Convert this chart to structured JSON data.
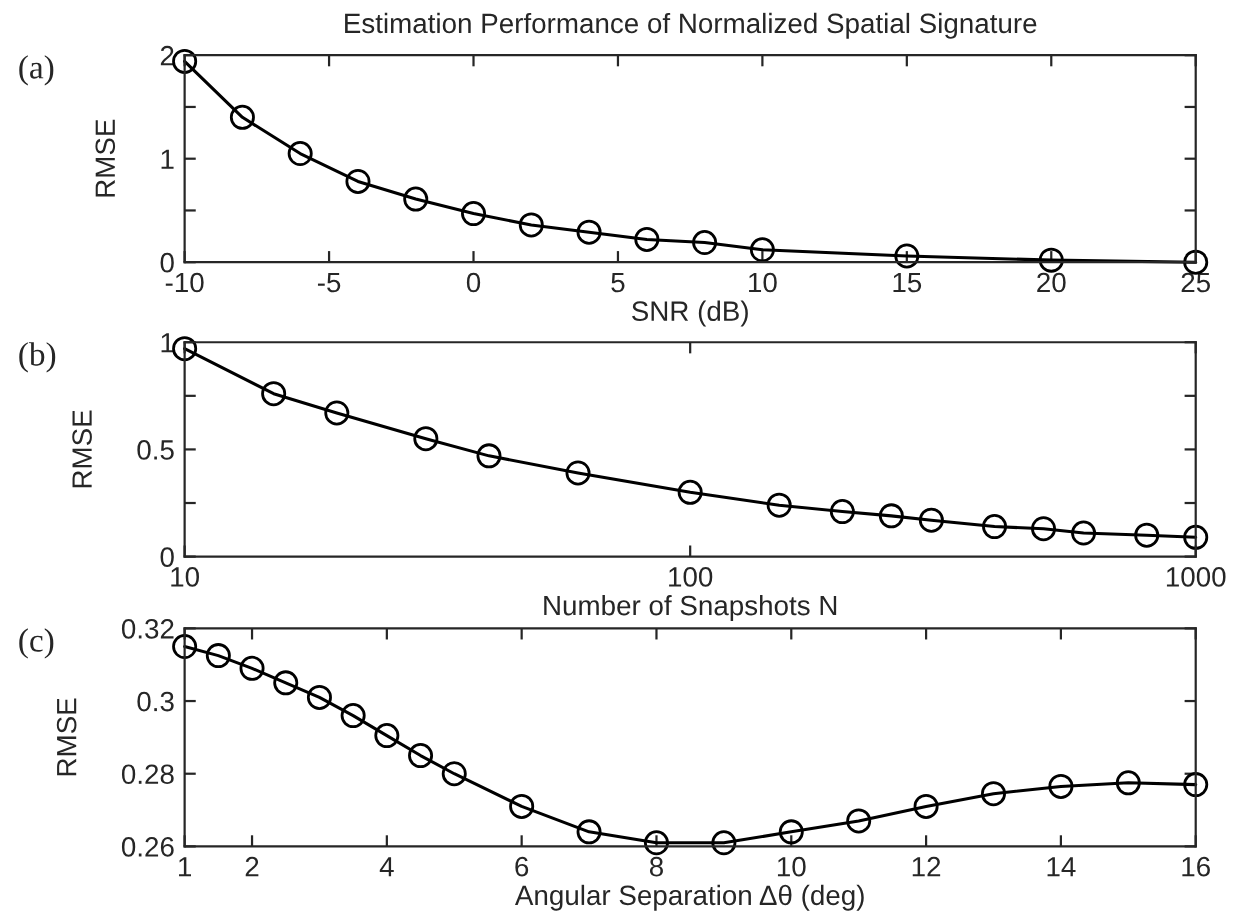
{
  "chart_data": [
    {
      "type": "line",
      "title": "Estimation Performance of Normalized Spatial Signature",
      "xlabel": "SNR (dB)",
      "ylabel": "RMSE",
      "annotations": [
        "(a)"
      ],
      "marker": "circle",
      "line_style": "solid",
      "grid": false,
      "legend": false,
      "series": [
        {
          "color": "#000000",
          "x": [
            -10,
            -8,
            -6,
            -4,
            -2,
            0,
            2,
            4,
            6,
            8,
            10,
            15,
            20,
            25
          ],
          "values": [
            1.94,
            1.4,
            1.05,
            0.78,
            0.61,
            0.47,
            0.36,
            0.29,
            0.22,
            0.19,
            0.12,
            0.06,
            0.02,
            0.0
          ]
        }
      ],
      "xlim": [
        -10,
        25
      ],
      "xticks": [
        -10,
        -5,
        0,
        5,
        10,
        15,
        20,
        25
      ],
      "ylim": [
        0,
        2
      ],
      "yticks": [
        0,
        {
          "value": 0.5,
          "label": null
        },
        1,
        {
          "value": 1.5,
          "label": null
        },
        2
      ]
    },
    {
      "type": "line",
      "xlabel": "Number of Snapshots N",
      "ylabel": "RMSE",
      "annotations": [
        "(b)"
      ],
      "marker": "circle",
      "line_style": "solid",
      "grid": false,
      "legend": false,
      "log": "x",
      "series": [
        {
          "color": "#000000",
          "x": [
            10,
            15,
            20,
            30,
            40,
            60,
            100,
            150,
            200,
            250,
            300,
            400,
            500,
            600,
            800,
            1000
          ],
          "values": [
            0.97,
            0.76,
            0.67,
            0.55,
            0.47,
            0.39,
            0.3,
            0.24,
            0.21,
            0.19,
            0.17,
            0.14,
            0.13,
            0.11,
            0.1,
            0.09
          ]
        }
      ],
      "xlim": [
        10,
        1000
      ],
      "xticks": [
        10,
        100,
        1000
      ],
      "ylim": [
        0,
        1
      ],
      "yticks": [
        0,
        {
          "value": 0.25,
          "label": null
        },
        0.5,
        {
          "value": 0.75,
          "label": null
        },
        1
      ]
    },
    {
      "type": "line",
      "xlabel": "Angular Separation Δθ (deg)",
      "ylabel": "RMSE",
      "annotations": [
        "(c)"
      ],
      "marker": "circle",
      "line_style": "solid",
      "grid": false,
      "legend": false,
      "series": [
        {
          "color": "#000000",
          "x": [
            1,
            1.5,
            2,
            2.5,
            3,
            3.5,
            4,
            4.5,
            5,
            6,
            7,
            8,
            9,
            10,
            11,
            12,
            13,
            14,
            15,
            16
          ],
          "values": [
            0.315,
            0.3125,
            0.309,
            0.305,
            0.301,
            0.296,
            0.2905,
            0.285,
            0.28,
            0.271,
            0.264,
            0.261,
            0.261,
            0.264,
            0.267,
            0.271,
            0.2745,
            0.2765,
            0.2775,
            0.277
          ]
        }
      ],
      "xlim": [
        1,
        16
      ],
      "xticks": [
        1,
        2,
        4,
        6,
        8,
        10,
        12,
        14,
        16
      ],
      "ylim": [
        0.26,
        0.32
      ],
      "yticks": [
        0.26,
        0.28,
        0.3,
        0.32
      ]
    }
  ]
}
